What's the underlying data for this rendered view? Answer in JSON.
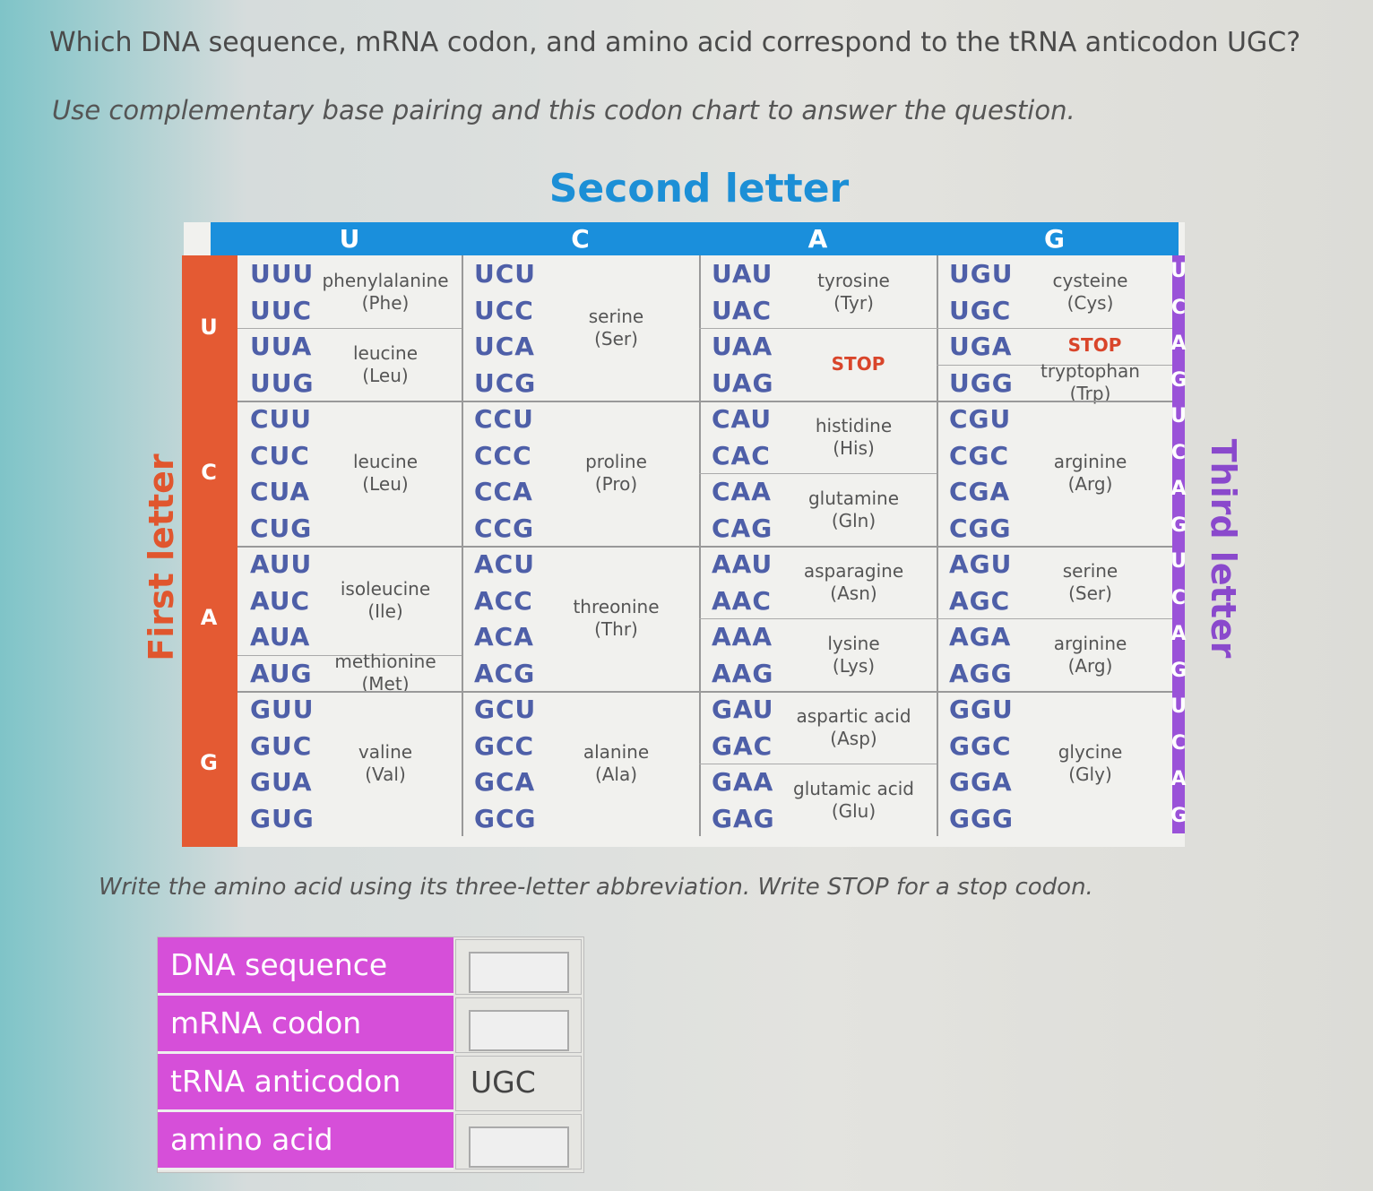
{
  "question": "Which DNA sequence, mRNA codon, and amino acid correspond to the tRNA anticodon UGC?",
  "instruction": "Use complementary base pairing and this codon chart to answer the question.",
  "codon_chart": {
    "title": "Second letter",
    "first_label": "First letter",
    "third_label": "Third letter",
    "columns": [
      "U",
      "C",
      "A",
      "G"
    ],
    "rows": [
      {
        "letter": "U",
        "third_letters": [
          "U",
          "C",
          "A",
          "G"
        ],
        "cells": [
          [
            {
              "codons": [
                "UUU",
                "UUC"
              ],
              "name": "phenylalanine",
              "abbr": "(Phe)"
            },
            {
              "codons": [
                "UUA",
                "UUG"
              ],
              "name": "leucine",
              "abbr": "(Leu)"
            }
          ],
          [
            {
              "codons": [
                "UCU",
                "UCC",
                "UCA",
                "UCG"
              ],
              "name": "serine",
              "abbr": "(Ser)"
            }
          ],
          [
            {
              "codons": [
                "UAU",
                "UAC"
              ],
              "name": "tyrosine",
              "abbr": "(Tyr)"
            },
            {
              "codons": [
                "UAA",
                "UAG"
              ],
              "stop": "STOP"
            }
          ],
          [
            {
              "codons": [
                "UGU",
                "UGC"
              ],
              "name": "cysteine",
              "abbr": "(Cys)"
            },
            {
              "codons": [
                "UGA"
              ],
              "stop": "STOP"
            },
            {
              "codons": [
                "UGG"
              ],
              "name": "tryptophan",
              "abbr": "(Trp)"
            }
          ]
        ]
      },
      {
        "letter": "C",
        "third_letters": [
          "U",
          "C",
          "A",
          "G"
        ],
        "cells": [
          [
            {
              "codons": [
                "CUU",
                "CUC",
                "CUA",
                "CUG"
              ],
              "name": "leucine",
              "abbr": "(Leu)"
            }
          ],
          [
            {
              "codons": [
                "CCU",
                "CCC",
                "CCA",
                "CCG"
              ],
              "name": "proline",
              "abbr": "(Pro)"
            }
          ],
          [
            {
              "codons": [
                "CAU",
                "CAC"
              ],
              "name": "histidine",
              "abbr": "(His)"
            },
            {
              "codons": [
                "CAA",
                "CAG"
              ],
              "name": "glutamine",
              "abbr": "(Gln)"
            }
          ],
          [
            {
              "codons": [
                "CGU",
                "CGC",
                "CGA",
                "CGG"
              ],
              "name": "arginine",
              "abbr": "(Arg)"
            }
          ]
        ]
      },
      {
        "letter": "A",
        "third_letters": [
          "U",
          "C",
          "A",
          "G"
        ],
        "cells": [
          [
            {
              "codons": [
                "AUU",
                "AUC",
                "AUA"
              ],
              "name": "isoleucine",
              "abbr": "(Ile)"
            },
            {
              "codons": [
                "AUG"
              ],
              "name": "methionine",
              "abbr": "(Met)"
            }
          ],
          [
            {
              "codons": [
                "ACU",
                "ACC",
                "ACA",
                "ACG"
              ],
              "name": "threonine",
              "abbr": "(Thr)"
            }
          ],
          [
            {
              "codons": [
                "AAU",
                "AAC"
              ],
              "name": "asparagine",
              "abbr": "(Asn)"
            },
            {
              "codons": [
                "AAA",
                "AAG"
              ],
              "name": "lysine",
              "abbr": "(Lys)"
            }
          ],
          [
            {
              "codons": [
                "AGU",
                "AGC"
              ],
              "name": "serine",
              "abbr": "(Ser)"
            },
            {
              "codons": [
                "AGA",
                "AGG"
              ],
              "name": "arginine",
              "abbr": "(Arg)"
            }
          ]
        ]
      },
      {
        "letter": "G",
        "third_letters": [
          "U",
          "C",
          "A",
          "G"
        ],
        "cells": [
          [
            {
              "codons": [
                "GUU",
                "GUC",
                "GUA",
                "GUG"
              ],
              "name": "valine",
              "abbr": "(Val)"
            }
          ],
          [
            {
              "codons": [
                "GCU",
                "GCC",
                "GCA",
                "GCG"
              ],
              "name": "alanine",
              "abbr": "(Ala)"
            }
          ],
          [
            {
              "codons": [
                "GAU",
                "GAC"
              ],
              "name": "aspartic acid",
              "abbr": "(Asp)"
            },
            {
              "codons": [
                "GAA",
                "GAG"
              ],
              "name": "glutamic acid",
              "abbr": "(Glu)"
            }
          ],
          [
            {
              "codons": [
                "GGU",
                "GGC",
                "GGA",
                "GGG"
              ],
              "name": "glycine",
              "abbr": "(Gly)"
            }
          ]
        ]
      }
    ]
  },
  "note": "Write the amino acid using its three-letter abbreviation. Write STOP for a stop codon.",
  "answers": [
    {
      "label": "DNA sequence"
    },
    {
      "label": "mRNA codon"
    },
    {
      "label": "tRNA anticodon",
      "value": "UGC"
    },
    {
      "label": "amino acid"
    }
  ]
}
